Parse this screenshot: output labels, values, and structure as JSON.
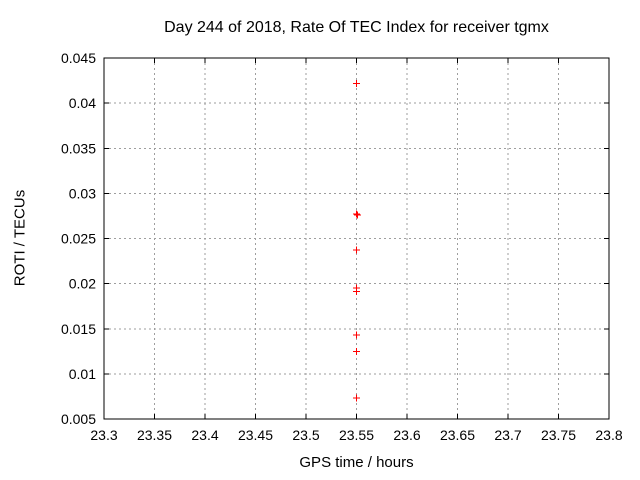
{
  "chart_data": {
    "type": "scatter",
    "title": "Day 244 of 2018, Rate Of TEC Index for receiver tgmx",
    "xlabel": "GPS time / hours",
    "ylabel": "ROTI / TECUs",
    "xlim": [
      23.3,
      23.8
    ],
    "ylim": [
      0.005,
      0.045
    ],
    "xticks": [
      23.3,
      23.35,
      23.4,
      23.45,
      23.5,
      23.55,
      23.6,
      23.65,
      23.7,
      23.75,
      23.8
    ],
    "yticks": [
      0.005,
      0.01,
      0.015,
      0.02,
      0.025,
      0.03,
      0.035,
      0.04,
      0.045
    ],
    "grid": true,
    "legend_position": "none",
    "marker": "plus",
    "series": [
      {
        "name": "ROTI",
        "color": "#ff0000",
        "points": [
          {
            "x": 23.55,
            "y": 0.0422
          },
          {
            "x": 23.55,
            "y": 0.0277
          },
          {
            "x": 23.551,
            "y": 0.0276
          },
          {
            "x": 23.55,
            "y": 0.0237
          },
          {
            "x": 23.55,
            "y": 0.0195
          },
          {
            "x": 23.55,
            "y": 0.0191
          },
          {
            "x": 23.55,
            "y": 0.0143
          },
          {
            "x": 23.55,
            "y": 0.0125
          },
          {
            "x": 23.55,
            "y": 0.0073
          }
        ]
      }
    ],
    "colors": {
      "background": "#ffffff",
      "axis": "#000000",
      "grid": "#9e9e9e",
      "text": "#000000",
      "marker": "#ff0000"
    }
  }
}
